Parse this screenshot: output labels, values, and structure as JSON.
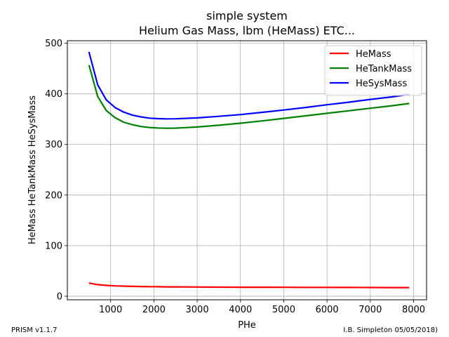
{
  "footer": {
    "left": "PRISM v1.1.7",
    "right": "I.B. Simpleton 05/05/2018)"
  },
  "chart_data": {
    "type": "line",
    "title": "simple system",
    "subtitle": "Helium Gas Mass, lbm (HeMass) ETC...",
    "xlabel": "PHe",
    "ylabel": "HeMass HeTankMass HeSysMass",
    "xlim": [
      0,
      8300
    ],
    "ylim": [
      -7,
      505
    ],
    "xticks": [
      1000,
      2000,
      3000,
      4000,
      5000,
      6000,
      7000,
      8000
    ],
    "yticks": [
      0,
      100,
      200,
      300,
      400,
      500
    ],
    "grid": true,
    "legend_position": "top-right",
    "x": [
      500,
      700,
      900,
      1100,
      1300,
      1500,
      1700,
      1900,
      2100,
      2300,
      2500,
      3000,
      3500,
      4000,
      4500,
      5000,
      5500,
      6000,
      6500,
      7000,
      7500,
      7900
    ],
    "series": [
      {
        "name": "HeMass",
        "color": "#ff0000",
        "values": [
          26,
          23,
          21.5,
          20.5,
          20,
          19.5,
          19.2,
          19,
          18.8,
          18.6,
          18.5,
          18.2,
          18,
          17.9,
          17.8,
          17.7,
          17.6,
          17.5,
          17.4,
          17.3,
          17.2,
          17.2
        ]
      },
      {
        "name": "HeTankMass",
        "color": "#008000",
        "values": [
          457,
          395,
          367,
          353,
          344,
          339,
          335.5,
          333.5,
          332.5,
          332,
          332.2,
          334.5,
          338,
          342,
          346.5,
          351.5,
          356.5,
          361.5,
          366.5,
          371.5,
          376.5,
          381
        ]
      },
      {
        "name": "HeSysMass",
        "color": "#0000ff",
        "values": [
          483,
          418,
          388,
          373,
          364,
          358,
          354.5,
          352,
          351,
          350.5,
          350.7,
          352.5,
          355.5,
          359,
          363.5,
          368,
          373,
          378.5,
          383.5,
          389,
          394,
          399
        ]
      }
    ]
  }
}
